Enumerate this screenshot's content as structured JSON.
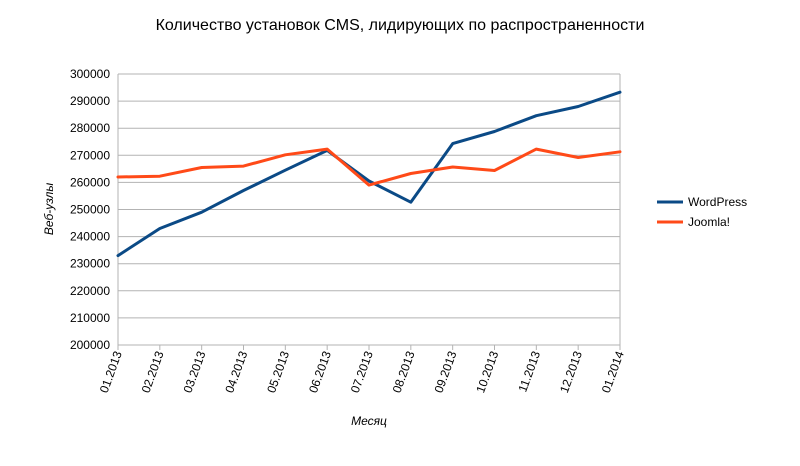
{
  "chart_data": {
    "type": "line",
    "title": "Количество установок CMS, лидирующих по распространенности",
    "xlabel": "Месяц",
    "ylabel": "Веб-узлы",
    "categories": [
      "01.2013",
      "02.2013",
      "03.2013",
      "04.2013",
      "05.2013",
      "06.2013",
      "07.2013",
      "08.2013",
      "09.2013",
      "10.2013",
      "11.2013",
      "12.2013",
      "01.2014"
    ],
    "ylim": [
      200000,
      300000
    ],
    "yticks": [
      "200000",
      "210000",
      "220000",
      "230000",
      "240000",
      "250000",
      "260000",
      "270000",
      "280000",
      "290000",
      "300000"
    ],
    "grid": true,
    "legend_position": "right",
    "series": [
      {
        "name": "WordPress",
        "color": "#0b4a86",
        "values": [
          233000,
          243000,
          249000,
          257000,
          264500,
          271800,
          260500,
          252700,
          274300,
          278800,
          284600,
          288000,
          293300
        ]
      },
      {
        "name": "Joomla!",
        "color": "#ff4a18",
        "values": [
          262000,
          262300,
          265500,
          266000,
          270200,
          272300,
          259000,
          263300,
          265700,
          264400,
          272300,
          269200,
          271300
        ]
      }
    ]
  }
}
